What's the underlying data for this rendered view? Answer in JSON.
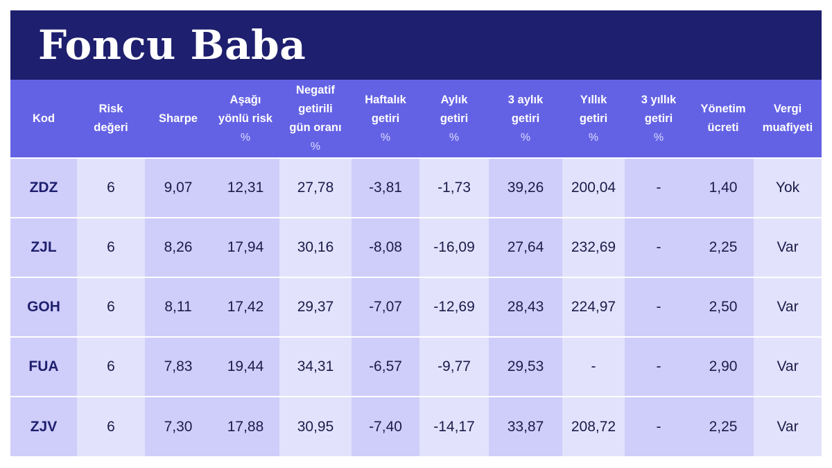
{
  "title": "Foncu Baba",
  "columns": [
    {
      "lines": [
        "Kod"
      ],
      "unit": ""
    },
    {
      "lines": [
        "Risk",
        "değeri"
      ],
      "unit": ""
    },
    {
      "lines": [
        "Sharpe"
      ],
      "unit": ""
    },
    {
      "lines": [
        "Aşağı",
        "yönlü risk"
      ],
      "unit": "%"
    },
    {
      "lines": [
        "Negatif",
        "getirili",
        "gün oranı"
      ],
      "unit": "%"
    },
    {
      "lines": [
        "Haftalık",
        "getiri"
      ],
      "unit": "%"
    },
    {
      "lines": [
        "Aylık",
        "getiri"
      ],
      "unit": "%"
    },
    {
      "lines": [
        "3 aylık",
        "getiri"
      ],
      "unit": "%"
    },
    {
      "lines": [
        "Yıllık",
        "getiri"
      ],
      "unit": "%"
    },
    {
      "lines": [
        "3 yıllık",
        "getiri"
      ],
      "unit": "%"
    },
    {
      "lines": [
        "Yönetim",
        "ücreti"
      ],
      "unit": ""
    },
    {
      "lines": [
        "Vergi",
        "muafiyeti"
      ],
      "unit": ""
    }
  ],
  "rows": [
    [
      "ZDZ",
      "6",
      "9,07",
      "12,31",
      "27,78",
      "-3,81",
      "-1,73",
      "39,26",
      "200,04",
      "-",
      "1,40",
      "Yok"
    ],
    [
      "ZJL",
      "6",
      "8,26",
      "17,94",
      "30,16",
      "-8,08",
      "-16,09",
      "27,64",
      "232,69",
      "-",
      "2,25",
      "Var"
    ],
    [
      "GOH",
      "6",
      "8,11",
      "17,42",
      "29,37",
      "-7,07",
      "-12,69",
      "28,43",
      "224,97",
      "-",
      "2,50",
      "Var"
    ],
    [
      "FUA",
      "6",
      "7,83",
      "19,44",
      "34,31",
      "-6,57",
      "-9,77",
      "29,53",
      "-",
      "-",
      "2,90",
      "Var"
    ],
    [
      "ZJV",
      "6",
      "7,30",
      "17,88",
      "30,95",
      "-7,40",
      "-14,17",
      "33,87",
      "208,72",
      "-",
      "2,25",
      "Var"
    ]
  ]
}
